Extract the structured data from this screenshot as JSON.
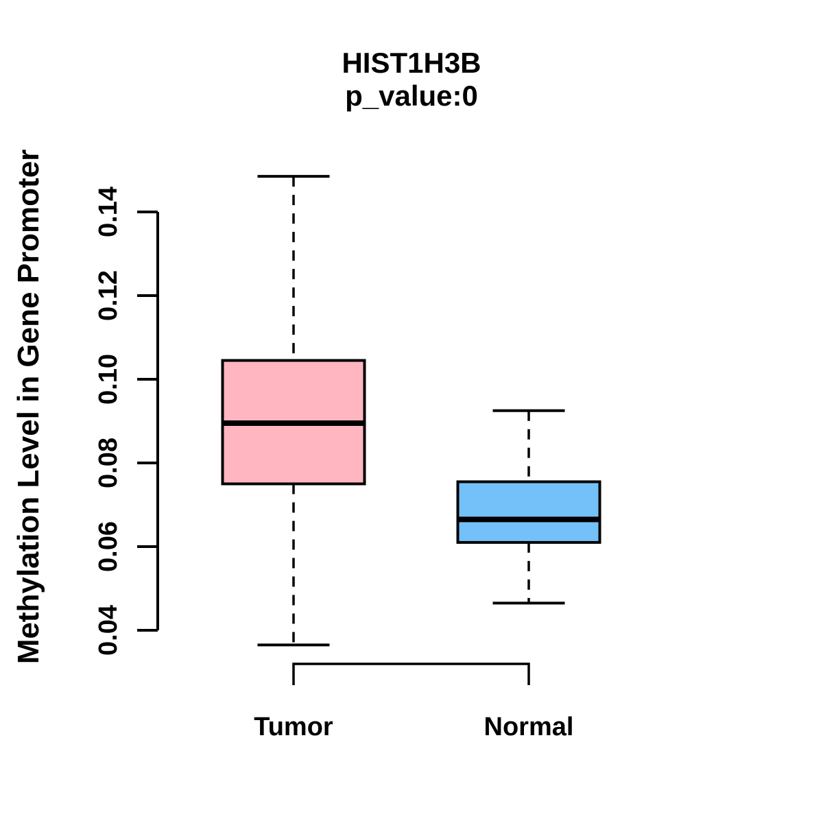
{
  "title": {
    "line1": "HIST1H3B",
    "line2": "p_value:0"
  },
  "axes": {
    "ylabel": "Methylation Level in Gene Promoter",
    "x_labels": [
      "Tumor",
      "Normal"
    ]
  },
  "colors": {
    "tumor_fill": "#FFB6C1",
    "normal_fill": "#74C0F8",
    "ink": "#000000"
  },
  "chart_data": {
    "type": "boxplot",
    "title": "HIST1H3B",
    "subtitle": "p_value:0",
    "ylabel": "Methylation Level in Gene Promoter",
    "xlabel": "",
    "categories": [
      "Tumor",
      "Normal"
    ],
    "series": [
      {
        "name": "Tumor",
        "color": "#FFB6C1",
        "whisker_low": 0.0365,
        "q1": 0.075,
        "median": 0.0895,
        "q3": 0.1045,
        "whisker_high": 0.1485,
        "outliers": []
      },
      {
        "name": "Normal",
        "color": "#74C0F8",
        "whisker_low": 0.0465,
        "q1": 0.061,
        "median": 0.0665,
        "q3": 0.0755,
        "whisker_high": 0.0925,
        "outliers": []
      }
    ],
    "y_axis": {
      "ticks": [
        0.04,
        0.06,
        0.08,
        0.1,
        0.12,
        0.14
      ],
      "tick_labels": [
        "0.04",
        "0.06",
        "0.08",
        "0.10",
        "0.12",
        "0.14"
      ],
      "range_shown": [
        0.04,
        0.14
      ]
    },
    "grid": false,
    "legend": false
  }
}
